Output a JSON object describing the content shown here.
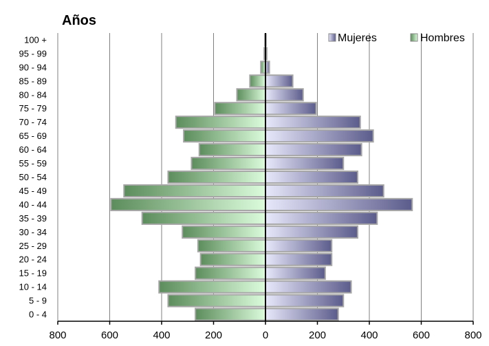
{
  "chart_data": {
    "type": "bar",
    "orientation": "horizontal",
    "title": "Años",
    "categories": [
      "0 - 4",
      "5 - 9",
      "10 - 14",
      "15 - 19",
      "20 - 24",
      "25 - 29",
      "30 - 34",
      "35 - 39",
      "40 - 44",
      "45 - 49",
      "50 - 54",
      "55 - 59",
      "60 - 64",
      "65 - 69",
      "70 - 74",
      "75 - 79",
      "80 - 84",
      "85 - 89",
      "90 - 94",
      "95 - 99",
      "100 +"
    ],
    "series": [
      {
        "name": "Mujeres",
        "values": [
          280,
          300,
          330,
          230,
          255,
          255,
          355,
          430,
          565,
          455,
          355,
          300,
          370,
          415,
          365,
          195,
          145,
          105,
          15,
          5,
          2
        ]
      },
      {
        "name": "Hombres",
        "values": [
          270,
          375,
          410,
          270,
          250,
          260,
          320,
          475,
          595,
          545,
          375,
          285,
          255,
          315,
          345,
          195,
          110,
          60,
          18,
          5,
          2
        ]
      }
    ],
    "xlim": [
      -800,
      800
    ],
    "x_ticks": [
      -800,
      -600,
      -400,
      -200,
      0,
      200,
      400,
      600,
      800
    ],
    "x_tick_labels": [
      "800",
      "600",
      "400",
      "200",
      "0",
      "200",
      "400",
      "600",
      "800"
    ],
    "grid": "vertical",
    "legend": "top-right",
    "colors": {
      "mujeres": "#8a8ab8",
      "hombres": "#b7e6b5",
      "border": "#a6a6a6"
    }
  }
}
